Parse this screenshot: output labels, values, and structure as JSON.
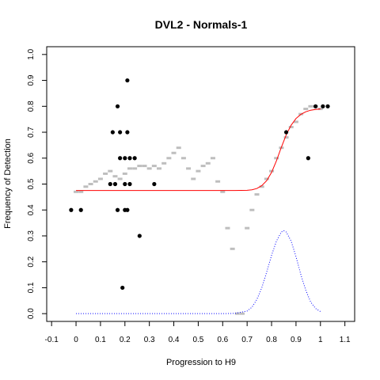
{
  "chart_data": {
    "type": "scatter",
    "title": "DVL2 - Normals-1",
    "xlabel": "Progression to H9",
    "ylabel": "Frequency of Detection",
    "xlim": [
      -0.12,
      1.14
    ],
    "ylim": [
      -0.03,
      1.03
    ],
    "x_ticks": [
      "-0.1",
      "0",
      "0.1",
      "0.2",
      "0.3",
      "0.4",
      "0.5",
      "0.6",
      "0.7",
      "0.8",
      "0.9",
      "1",
      "1.1"
    ],
    "y_ticks": [
      "0.0",
      "0.1",
      "0.2",
      "0.3",
      "0.4",
      "0.5",
      "0.6",
      "0.7",
      "0.8",
      "0.9",
      "1.0"
    ],
    "grid": false,
    "colors": {
      "observed": "#000000",
      "smoothed": "#bebebe",
      "fit": "#ff0000",
      "density": "#0000ff"
    },
    "series": [
      {
        "role": "observed",
        "style": "black-points",
        "x": [
          -0.02,
          0.02,
          0.14,
          0.15,
          0.16,
          0.17,
          0.17,
          0.18,
          0.18,
          0.19,
          0.2,
          0.2,
          0.2,
          0.21,
          0.21,
          0.21,
          0.22,
          0.22,
          0.24,
          0.26,
          0.32,
          0.86,
          0.95,
          0.98,
          1.01,
          1.03
        ],
        "y": [
          0.4,
          0.4,
          0.5,
          0.7,
          0.5,
          0.8,
          0.4,
          0.7,
          0.6,
          0.1,
          0.6,
          0.5,
          0.4,
          0.9,
          0.7,
          0.4,
          0.5,
          0.6,
          0.6,
          0.3,
          0.5,
          0.7,
          0.6,
          0.8,
          0.8,
          0.8
        ]
      },
      {
        "role": "smoothed",
        "style": "gray-dots",
        "x": [
          0.0,
          0.02,
          0.04,
          0.06,
          0.08,
          0.1,
          0.12,
          0.14,
          0.16,
          0.18,
          0.2,
          0.22,
          0.24,
          0.26,
          0.28,
          0.3,
          0.32,
          0.34,
          0.36,
          0.38,
          0.4,
          0.42,
          0.44,
          0.46,
          0.48,
          0.5,
          0.52,
          0.54,
          0.56,
          0.58,
          0.6,
          0.62,
          0.64,
          0.66,
          0.68,
          0.7,
          0.72,
          0.74,
          0.76,
          0.78,
          0.8,
          0.82,
          0.84,
          0.86,
          0.88,
          0.9,
          0.92,
          0.94,
          0.96,
          0.98,
          1.0
        ],
        "y": [
          0.47,
          0.47,
          0.49,
          0.5,
          0.51,
          0.52,
          0.54,
          0.55,
          0.53,
          0.52,
          0.54,
          0.56,
          0.56,
          0.57,
          0.57,
          0.56,
          0.57,
          0.56,
          0.58,
          0.6,
          0.62,
          0.64,
          0.6,
          0.56,
          0.52,
          0.55,
          0.57,
          0.58,
          0.6,
          0.51,
          0.47,
          0.33,
          0.25,
          0.0,
          0.0,
          0.33,
          0.4,
          0.46,
          0.49,
          0.52,
          0.55,
          0.6,
          0.64,
          0.68,
          0.72,
          0.74,
          0.77,
          0.79,
          0.8,
          0.8,
          0.79
        ]
      },
      {
        "role": "fit",
        "style": "red-line",
        "x": [
          0.0,
          0.1,
          0.2,
          0.3,
          0.4,
          0.5,
          0.6,
          0.65,
          0.7,
          0.72,
          0.74,
          0.76,
          0.78,
          0.8,
          0.82,
          0.84,
          0.86,
          0.88,
          0.9,
          0.92,
          0.94,
          0.96,
          0.98,
          1.0
        ],
        "y": [
          0.475,
          0.475,
          0.475,
          0.475,
          0.475,
          0.475,
          0.475,
          0.475,
          0.476,
          0.478,
          0.483,
          0.494,
          0.513,
          0.545,
          0.59,
          0.642,
          0.69,
          0.727,
          0.753,
          0.769,
          0.779,
          0.785,
          0.788,
          0.79
        ]
      },
      {
        "role": "density",
        "style": "blue-dotted-line",
        "x": [
          0.0,
          0.1,
          0.2,
          0.3,
          0.4,
          0.5,
          0.6,
          0.65,
          0.7,
          0.72,
          0.74,
          0.76,
          0.78,
          0.8,
          0.82,
          0.84,
          0.85,
          0.86,
          0.88,
          0.9,
          0.92,
          0.94,
          0.96,
          0.98,
          1.0
        ],
        "y": [
          0.0,
          0.0,
          0.0,
          0.0,
          0.0,
          0.0,
          0.0,
          0.001,
          0.01,
          0.025,
          0.055,
          0.1,
          0.16,
          0.225,
          0.28,
          0.315,
          0.32,
          0.315,
          0.28,
          0.22,
          0.15,
          0.09,
          0.045,
          0.02,
          0.008
        ]
      }
    ]
  }
}
